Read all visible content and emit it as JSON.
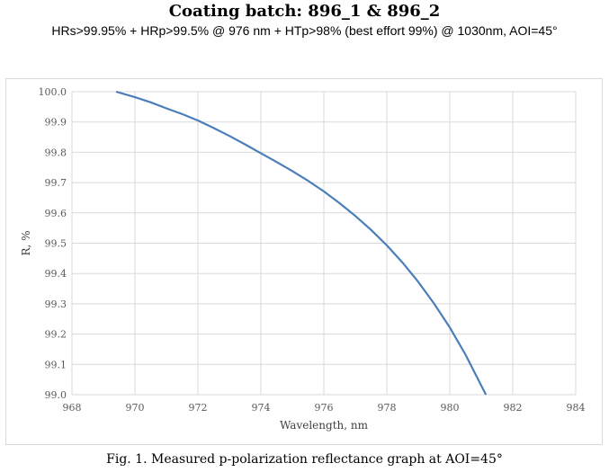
{
  "header": {
    "title": "Coating batch: 896_1 & 896_2",
    "subtitle": "HRs>99.95% + HRp>99.5% @ 976 nm + HTp>98% (best effort 99%) @ 1030nm, AOI=45°"
  },
  "caption": "Fig. 1. Measured p-polarization reflectance graph at AOI=45°",
  "chart_data": {
    "type": "line",
    "xlabel": "Wavelength, nm",
    "ylabel": "R, %",
    "xlim": [
      968,
      984
    ],
    "ylim": [
      99.0,
      100.0
    ],
    "xticks": [
      "968",
      "970",
      "972",
      "974",
      "976",
      "978",
      "980",
      "982",
      "984"
    ],
    "yticks": [
      "99.0",
      "99.1",
      "99.2",
      "99.3",
      "99.4",
      "99.5",
      "99.6",
      "99.7",
      "99.8",
      "99.9",
      "100.0"
    ],
    "grid": true,
    "line_color": "#4a7ebb",
    "series": [
      {
        "x": [
          969.4,
          970.0,
          970.5,
          971.0,
          971.5,
          972.0,
          972.5,
          973.0,
          973.5,
          974.0,
          974.5,
          975.0,
          975.5,
          976.0,
          976.5,
          977.0,
          977.5,
          978.0,
          978.5,
          979.0,
          979.5,
          980.0,
          980.5,
          981.0,
          981.15
        ],
        "y": [
          100.0,
          99.982,
          99.965,
          99.945,
          99.926,
          99.905,
          99.88,
          99.854,
          99.826,
          99.797,
          99.768,
          99.738,
          99.706,
          99.671,
          99.632,
          99.59,
          99.544,
          99.493,
          99.436,
          99.372,
          99.301,
          99.222,
          99.132,
          99.03,
          99.0
        ]
      }
    ]
  }
}
